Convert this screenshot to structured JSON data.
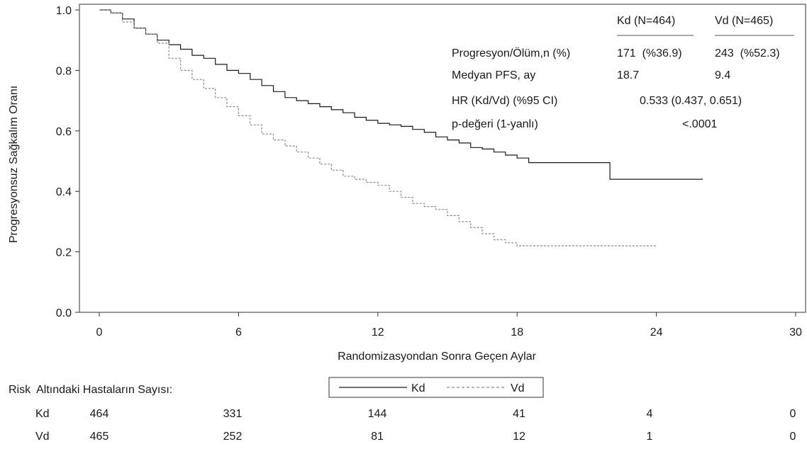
{
  "chart_data": {
    "type": "line",
    "ylabel": "Progresyonsuz Sağkalım Oranı",
    "xlabel": "Randomizasyondan Sonra Geçen Aylar",
    "xlim": [
      0,
      30
    ],
    "ylim": [
      0,
      1
    ],
    "x_ticks": [
      0,
      6,
      12,
      18,
      24,
      30
    ],
    "y_ticks": [
      0.0,
      0.2,
      0.4,
      0.6,
      0.8,
      1.0
    ],
    "y_tick_labels": [
      "0.0",
      "0.2",
      "0.4",
      "0.6",
      "0.8",
      "1.0"
    ],
    "grid": false,
    "legend": {
      "placement": "bottom-center",
      "entries": [
        "Kd",
        "Vd"
      ]
    },
    "series": [
      {
        "name": "Kd",
        "style": "solid",
        "color": "#1a1a1a",
        "points": [
          [
            0,
            1.0
          ],
          [
            0.5,
            0.99
          ],
          [
            1,
            0.97
          ],
          [
            1.5,
            0.94
          ],
          [
            2,
            0.92
          ],
          [
            2.5,
            0.9
          ],
          [
            3,
            0.885
          ],
          [
            3.5,
            0.87
          ],
          [
            4,
            0.85
          ],
          [
            4.5,
            0.84
          ],
          [
            5,
            0.82
          ],
          [
            5.5,
            0.8
          ],
          [
            6,
            0.79
          ],
          [
            6.5,
            0.77
          ],
          [
            7,
            0.75
          ],
          [
            7.5,
            0.73
          ],
          [
            8,
            0.71
          ],
          [
            8.5,
            0.7
          ],
          [
            9,
            0.69
          ],
          [
            9.5,
            0.68
          ],
          [
            10,
            0.67
          ],
          [
            10.5,
            0.66
          ],
          [
            11,
            0.645
          ],
          [
            11.5,
            0.635
          ],
          [
            12,
            0.625
          ],
          [
            12.5,
            0.62
          ],
          [
            13,
            0.615
          ],
          [
            13.5,
            0.605
          ],
          [
            14,
            0.595
          ],
          [
            14.5,
            0.58
          ],
          [
            15,
            0.57
          ],
          [
            15.5,
            0.56
          ],
          [
            16,
            0.545
          ],
          [
            16.5,
            0.54
          ],
          [
            17,
            0.53
          ],
          [
            17.5,
            0.52
          ],
          [
            18,
            0.51
          ],
          [
            18.5,
            0.495
          ],
          [
            19,
            0.495
          ],
          [
            20,
            0.495
          ],
          [
            21,
            0.495
          ],
          [
            21.5,
            0.495
          ],
          [
            22,
            0.44
          ],
          [
            23,
            0.44
          ],
          [
            24,
            0.44
          ],
          [
            25,
            0.44
          ],
          [
            26,
            0.44
          ]
        ]
      },
      {
        "name": "Vd",
        "style": "dashed",
        "color": "#8a8a8a",
        "points": [
          [
            0,
            1.0
          ],
          [
            0.5,
            0.99
          ],
          [
            1,
            0.96
          ],
          [
            1.5,
            0.94
          ],
          [
            2,
            0.92
          ],
          [
            2.5,
            0.89
          ],
          [
            3,
            0.84
          ],
          [
            3.5,
            0.8
          ],
          [
            4,
            0.77
          ],
          [
            4.5,
            0.74
          ],
          [
            5,
            0.71
          ],
          [
            5.5,
            0.68
          ],
          [
            6,
            0.65
          ],
          [
            6.5,
            0.62
          ],
          [
            7,
            0.59
          ],
          [
            7.5,
            0.57
          ],
          [
            8,
            0.55
          ],
          [
            8.5,
            0.53
          ],
          [
            9,
            0.51
          ],
          [
            9.5,
            0.49
          ],
          [
            10,
            0.47
          ],
          [
            10.5,
            0.45
          ],
          [
            11,
            0.44
          ],
          [
            11.5,
            0.43
          ],
          [
            12,
            0.42
          ],
          [
            12.5,
            0.4
          ],
          [
            13,
            0.38
          ],
          [
            13.5,
            0.36
          ],
          [
            14,
            0.35
          ],
          [
            14.5,
            0.34
          ],
          [
            15,
            0.32
          ],
          [
            15.5,
            0.3
          ],
          [
            16,
            0.28
          ],
          [
            16.5,
            0.26
          ],
          [
            17,
            0.24
          ],
          [
            17.5,
            0.23
          ],
          [
            18,
            0.22
          ],
          [
            19,
            0.22
          ],
          [
            20,
            0.22
          ],
          [
            21,
            0.22
          ],
          [
            22,
            0.22
          ],
          [
            23,
            0.22
          ],
          [
            24,
            0.22
          ]
        ]
      }
    ],
    "info_table": {
      "headers": [
        "Kd (N=464)",
        "Vd (N=465)"
      ],
      "rows": [
        {
          "label": "Progresyon/Ölüm,n (%)",
          "kd": "171  (%36.9)",
          "vd": "243  (%52.3)"
        },
        {
          "label": "Medyan PFS, ay",
          "kd": "18.7",
          "vd": "9.4"
        },
        {
          "label": "HR (Kd/Vd) (%95 CI)",
          "combined": "0.533 (0.437, 0.651)"
        },
        {
          "label": "p-değeri (1-yanlı)",
          "combined": "<.0001"
        }
      ]
    },
    "risk_table": {
      "title": "Risk  Altındaki Hastaların Sayısı:",
      "rows": [
        {
          "name": "Kd",
          "values": [
            "464",
            "331",
            "144",
            "41",
            "4",
            "0"
          ]
        },
        {
          "name": "Vd",
          "values": [
            "465",
            "252",
            "81",
            "12",
            "1",
            "0"
          ]
        }
      ]
    }
  }
}
